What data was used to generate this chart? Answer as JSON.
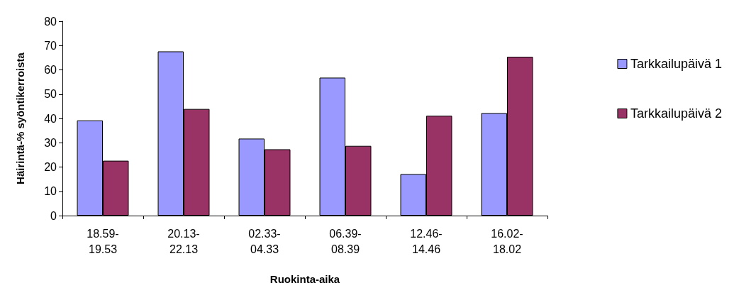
{
  "chart_data": {
    "type": "bar",
    "xlabel": "Ruokinta-aika",
    "ylabel": "Häirintä-% syöntikerroista",
    "categories": [
      "18.59-19.53",
      "20.13-22.13",
      "02.33-04.33",
      "06.39-08.39",
      "12.46-14.46",
      "16.02-18.02"
    ],
    "series": [
      {
        "name": "Tarkkailupäivä 1",
        "color": "#9999ff",
        "values": [
          39.2,
          67.6,
          31.7,
          56.8,
          17.1,
          42.2
        ]
      },
      {
        "name": "Tarkkailupäivä 2",
        "color": "#993366",
        "values": [
          22.6,
          43.9,
          27.3,
          28.7,
          41.1,
          65.4
        ]
      }
    ],
    "ylim": [
      0,
      80
    ],
    "yticks": [
      0,
      10,
      20,
      30,
      40,
      50,
      60,
      70,
      80
    ],
    "grid": false,
    "legend": "right"
  }
}
